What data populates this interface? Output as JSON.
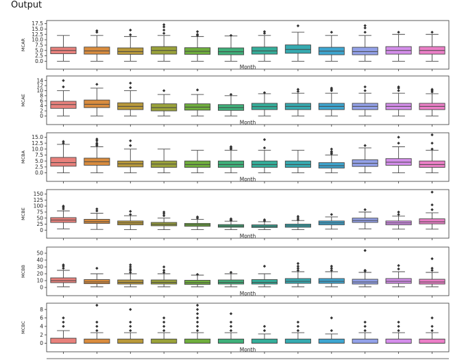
{
  "output_label": "Output",
  "chart_data": {
    "type": "box",
    "xlabel": "Month",
    "months": 12,
    "colors": [
      "#e8817c",
      "#d98c3e",
      "#b9993a",
      "#9aa23a",
      "#6fae3d",
      "#3fb07a",
      "#35ae9a",
      "#36aab0",
      "#3ea5cf",
      "#93a1e8",
      "#d48eea",
      "#eb7fc7"
    ],
    "panels": [
      {
        "ylabel": "MCAR",
        "ylim": [
          -0.5,
          18
        ],
        "yticks": [
          0,
          2.5,
          5,
          7.5,
          10,
          12.5,
          15,
          17.5
        ],
        "yticklabels": [
          "0.0",
          "2.5",
          "5.0",
          "7.5",
          "10.0",
          "12.5",
          "15.0",
          "17.5"
        ],
        "boxes": [
          {
            "min": 0,
            "q1": 3.5,
            "median": 5,
            "q3": 6.5,
            "max": 12,
            "outliers": []
          },
          {
            "min": 0,
            "q1": 3.3,
            "median": 4.8,
            "q3": 6.6,
            "max": 12,
            "outliers": [
              13.5,
              14.2
            ]
          },
          {
            "min": 0,
            "q1": 3.2,
            "median": 4.5,
            "q3": 6.2,
            "max": 11.5,
            "outliers": [
              12.3,
              14.5
            ]
          },
          {
            "min": 0,
            "q1": 3.3,
            "median": 5,
            "q3": 6.8,
            "max": 12,
            "outliers": [
              13,
              14.5,
              16,
              17
            ]
          },
          {
            "min": 0,
            "q1": 3.2,
            "median": 4.6,
            "q3": 6.3,
            "max": 11.5,
            "outliers": [
              12,
              12.5,
              13.8
            ]
          },
          {
            "min": 0,
            "q1": 3,
            "median": 4.4,
            "q3": 6.2,
            "max": 11.8,
            "outliers": [
              12
            ]
          },
          {
            "min": 0,
            "q1": 3.3,
            "median": 4.8,
            "q3": 6.6,
            "max": 12,
            "outliers": [
              13,
              13.8
            ]
          },
          {
            "min": 0,
            "q1": 3.7,
            "median": 5.5,
            "q3": 7.6,
            "max": 13.5,
            "outliers": [
              16.5
            ]
          },
          {
            "min": 0,
            "q1": 3,
            "median": 4.7,
            "q3": 6.5,
            "max": 12,
            "outliers": [
              13.5
            ]
          },
          {
            "min": 0,
            "q1": 3,
            "median": 4.5,
            "q3": 6.5,
            "max": 12,
            "outliers": [
              13.5,
              15.5,
              16.6
            ]
          },
          {
            "min": 0,
            "q1": 3.3,
            "median": 5,
            "q3": 6.8,
            "max": 12.5,
            "outliers": [
              13.5
            ]
          },
          {
            "min": 0,
            "q1": 3.3,
            "median": 5,
            "q3": 6.8,
            "max": 12.5,
            "outliers": [
              13.5
            ]
          }
        ]
      },
      {
        "ylabel": "MCAE",
        "ylim": [
          -0.7,
          15
        ],
        "yticks": [
          0,
          2,
          4,
          6,
          8,
          10,
          12,
          14
        ],
        "yticklabels": [
          "0",
          "2",
          "4",
          "6",
          "8",
          "10",
          "12",
          "14"
        ],
        "boxes": [
          {
            "min": 0,
            "q1": 3,
            "median": 4.5,
            "q3": 5.8,
            "max": 10,
            "outliers": [
              11.5,
              14
            ]
          },
          {
            "min": 0,
            "q1": 3.3,
            "median": 4.6,
            "q3": 6.3,
            "max": 11,
            "outliers": [
              12.5
            ]
          },
          {
            "min": 0,
            "q1": 2.5,
            "median": 3.8,
            "q3": 5.2,
            "max": 10,
            "outliers": [
              11.2,
              13
            ]
          },
          {
            "min": 0,
            "q1": 2,
            "median": 3.3,
            "q3": 4.8,
            "max": 8.5,
            "outliers": [
              10
            ]
          },
          {
            "min": 0,
            "q1": 2.3,
            "median": 3.5,
            "q3": 4.8,
            "max": 8.5,
            "outliers": [
              10.3
            ]
          },
          {
            "min": 0,
            "q1": 2.2,
            "median": 3.3,
            "q3": 4.5,
            "max": 8,
            "outliers": [
              8.5
            ]
          },
          {
            "min": 0,
            "q1": 2.5,
            "median": 3.7,
            "q3": 5,
            "max": 8.8,
            "outliers": [
              9.2
            ]
          },
          {
            "min": 0,
            "q1": 2.5,
            "median": 3.8,
            "q3": 5,
            "max": 9,
            "outliers": [
              9.7,
              10.5
            ]
          },
          {
            "min": 0,
            "q1": 2.5,
            "median": 3.8,
            "q3": 5,
            "max": 9,
            "outliers": [
              10,
              10.5,
              11
            ]
          },
          {
            "min": 0,
            "q1": 2.5,
            "median": 3.8,
            "q3": 5,
            "max": 9,
            "outliers": [
              10,
              11.5
            ]
          },
          {
            "min": 0,
            "q1": 2.5,
            "median": 3.8,
            "q3": 5,
            "max": 9,
            "outliers": [
              10,
              11,
              11.5
            ]
          },
          {
            "min": 0,
            "q1": 2.5,
            "median": 3.8,
            "q3": 5,
            "max": 8.8,
            "outliers": [
              9.5,
              10,
              10.5
            ]
          }
        ]
      },
      {
        "ylabel": "MCBA",
        "ylim": [
          -0.7,
          16
        ],
        "yticks": [
          0,
          2.5,
          5,
          7.5,
          10,
          12.5,
          15
        ],
        "yticklabels": [
          "0.0",
          "2.5",
          "5.0",
          "7.5",
          "10.0",
          "12.5",
          "15.0"
        ],
        "boxes": [
          {
            "min": 0,
            "q1": 2.8,
            "median": 4.3,
            "q3": 6.5,
            "max": 12,
            "outliers": [
              12.5,
              13.2
            ]
          },
          {
            "min": 0,
            "q1": 3.2,
            "median": 4.7,
            "q3": 6.2,
            "max": 11,
            "outliers": [
              11.5,
              12,
              12.5,
              13.5,
              14.2
            ]
          },
          {
            "min": 0,
            "q1": 2.5,
            "median": 3.8,
            "q3": 5,
            "max": 10,
            "outliers": [
              11.5,
              13.5
            ]
          },
          {
            "min": 0,
            "q1": 2.3,
            "median": 3.7,
            "q3": 5,
            "max": 10,
            "outliers": []
          },
          {
            "min": 0,
            "q1": 2.3,
            "median": 3.5,
            "q3": 5,
            "max": 9.5,
            "outliers": []
          },
          {
            "min": 0,
            "q1": 2.3,
            "median": 3.5,
            "q3": 5,
            "max": 9.5,
            "outliers": [
              10,
              10.5,
              11
            ]
          },
          {
            "min": 0,
            "q1": 2.3,
            "median": 3.5,
            "q3": 5,
            "max": 9.5,
            "outliers": [
              10.5,
              14
            ]
          },
          {
            "min": 0,
            "q1": 2.3,
            "median": 3.5,
            "q3": 5,
            "max": 9.5,
            "outliers": []
          },
          {
            "min": 0,
            "q1": 2,
            "median": 3,
            "q3": 4.3,
            "max": 7.5,
            "outliers": [
              8,
              8.5,
              9,
              10
            ]
          },
          {
            "min": 0,
            "q1": 2.7,
            "median": 4,
            "q3": 5.5,
            "max": 10.5,
            "outliers": [
              11.5
            ]
          },
          {
            "min": 0,
            "q1": 3.2,
            "median": 4.5,
            "q3": 6,
            "max": 11,
            "outliers": [
              12.5,
              15
            ]
          },
          {
            "min": 0,
            "q1": 2.3,
            "median": 3.5,
            "q3": 5,
            "max": 9.5,
            "outliers": [
              10,
              12.5,
              16
            ]
          }
        ]
      },
      {
        "ylabel": "MCBE",
        "ylim": [
          -5,
          160
        ],
        "yticks": [
          0,
          25,
          50,
          75,
          100,
          125,
          150
        ],
        "yticklabels": [
          "0",
          "25",
          "50",
          "75",
          "100",
          "125",
          "150"
        ],
        "boxes": [
          {
            "min": 5,
            "q1": 32,
            "median": 42,
            "q3": 52,
            "max": 80,
            "outliers": [
              88,
              95,
              100
            ]
          },
          {
            "min": 3,
            "q1": 28,
            "median": 35,
            "q3": 45,
            "max": 70,
            "outliers": [
              80,
              88
            ]
          },
          {
            "min": 2,
            "q1": 22,
            "median": 30,
            "q3": 38,
            "max": 60,
            "outliers": [
              65,
              78
            ]
          },
          {
            "min": 2,
            "q1": 18,
            "median": 24,
            "q3": 32,
            "max": 50,
            "outliers": [
              60,
              68,
              75
            ]
          },
          {
            "min": 2,
            "q1": 16,
            "median": 22,
            "q3": 28,
            "max": 45,
            "outliers": [
              50,
              55
            ]
          },
          {
            "min": 2,
            "q1": 12,
            "median": 17,
            "q3": 23,
            "max": 37,
            "outliers": [
              40,
              43,
              47
            ]
          },
          {
            "min": 2,
            "q1": 11,
            "median": 16,
            "q3": 22,
            "max": 35,
            "outliers": [
              38,
              43
            ]
          },
          {
            "min": 2,
            "q1": 12,
            "median": 18,
            "q3": 25,
            "max": 40,
            "outliers": [
              43,
              50,
              57
            ]
          },
          {
            "min": 4,
            "q1": 22,
            "median": 30,
            "q3": 38,
            "max": 55,
            "outliers": [
              65
            ]
          },
          {
            "min": 5,
            "q1": 32,
            "median": 40,
            "q3": 50,
            "max": 75,
            "outliers": [
              85
            ]
          },
          {
            "min": 4,
            "q1": 22,
            "median": 30,
            "q3": 38,
            "max": 58,
            "outliers": [
              65,
              75
            ]
          },
          {
            "min": 4,
            "q1": 26,
            "median": 35,
            "q3": 47,
            "max": 72,
            "outliers": [
              85,
              105,
              158
            ]
          }
        ]
      },
      {
        "ylabel": "MCBB",
        "ylim": [
          -2,
          56
        ],
        "yticks": [
          0,
          10,
          20,
          30,
          40,
          50
        ],
        "yticklabels": [
          "0",
          "10",
          "20",
          "30",
          "40",
          "50"
        ],
        "boxes": [
          {
            "min": 1,
            "q1": 7,
            "median": 10,
            "q3": 14,
            "max": 25,
            "outliers": [
              28,
              31,
              33
            ]
          },
          {
            "min": 1,
            "q1": 5.5,
            "median": 8,
            "q3": 11.5,
            "max": 20,
            "outliers": [
              28
            ]
          },
          {
            "min": 1,
            "q1": 5,
            "median": 7.5,
            "q3": 11,
            "max": 20,
            "outliers": [
              22,
              25,
              27,
              30,
              33
            ]
          },
          {
            "min": 1,
            "q1": 5,
            "median": 7.5,
            "q3": 11,
            "max": 20,
            "outliers": [
              22,
              25,
              30
            ]
          },
          {
            "min": 1,
            "q1": 4.5,
            "median": 7,
            "q3": 10.5,
            "max": 18,
            "outliers": [
              19
            ]
          },
          {
            "min": 1,
            "q1": 5,
            "median": 7.5,
            "q3": 11,
            "max": 20,
            "outliers": [
              22
            ]
          },
          {
            "min": 1,
            "q1": 5,
            "median": 7.5,
            "q3": 11.5,
            "max": 20,
            "outliers": [
              31
            ]
          },
          {
            "min": 1,
            "q1": 6,
            "median": 9,
            "q3": 13,
            "max": 23,
            "outliers": [
              25,
              28,
              31,
              35
            ]
          },
          {
            "min": 1,
            "q1": 6,
            "median": 9,
            "q3": 13,
            "max": 23,
            "outliers": [
              25,
              28,
              31
            ]
          },
          {
            "min": 1,
            "q1": 5,
            "median": 8,
            "q3": 12,
            "max": 22,
            "outliers": [
              24,
              25,
              54
            ]
          },
          {
            "min": 1,
            "q1": 6,
            "median": 9,
            "q3": 13,
            "max": 23,
            "outliers": [
              27,
              32
            ]
          },
          {
            "min": 1,
            "q1": 5,
            "median": 8,
            "q3": 12,
            "max": 22,
            "outliers": [
              25,
              28,
              42
            ]
          }
        ]
      },
      {
        "ylabel": "MCBC",
        "ylim": [
          -0.4,
          9
        ],
        "yticks": [
          0,
          2,
          4,
          6,
          8
        ],
        "yticklabels": [
          "0",
          "2",
          "4",
          "6",
          "8"
        ],
        "boxes": [
          {
            "min": 0,
            "q1": 0,
            "median": 0,
            "q3": 1.2,
            "max": 3,
            "outliers": [
              4,
              5,
              6
            ]
          },
          {
            "min": 0,
            "q1": 0,
            "median": 0,
            "q3": 1,
            "max": 2.5,
            "outliers": [
              3,
              4,
              5,
              9
            ]
          },
          {
            "min": 0,
            "q1": 0,
            "median": 0,
            "q3": 1,
            "max": 2.5,
            "outliers": [
              3,
              4,
              5,
              8
            ]
          },
          {
            "min": 0,
            "q1": 0,
            "median": 0,
            "q3": 1,
            "max": 2.5,
            "outliers": [
              3,
              4,
              5,
              6
            ]
          },
          {
            "min": 0,
            "q1": 0,
            "median": 0,
            "q3": 1,
            "max": 2.5,
            "outliers": [
              3,
              4,
              5,
              6,
              7,
              8,
              9
            ]
          },
          {
            "min": 0,
            "q1": 0,
            "median": 0,
            "q3": 1,
            "max": 2.5,
            "outliers": [
              3,
              4,
              5,
              7
            ]
          },
          {
            "min": 0,
            "q1": 0,
            "median": 0,
            "q3": 1,
            "max": 2.2,
            "outliers": [
              3,
              4
            ]
          },
          {
            "min": 0,
            "q1": 0,
            "median": 0,
            "q3": 1,
            "max": 2.5,
            "outliers": [
              3,
              4,
              5
            ]
          },
          {
            "min": 0,
            "q1": 0,
            "median": 0,
            "q3": 1,
            "max": 2.2,
            "outliers": [
              3,
              6
            ]
          },
          {
            "min": 0,
            "q1": 0,
            "median": 0,
            "q3": 1,
            "max": 2.5,
            "outliers": [
              3,
              4,
              5
            ]
          },
          {
            "min": 0,
            "q1": 0,
            "median": 0,
            "q3": 1,
            "max": 2.5,
            "outliers": [
              3,
              4,
              5
            ]
          },
          {
            "min": 0,
            "q1": 0,
            "median": 0,
            "q3": 1,
            "max": 2.5,
            "outliers": [
              3,
              4,
              6
            ]
          }
        ]
      }
    ]
  }
}
